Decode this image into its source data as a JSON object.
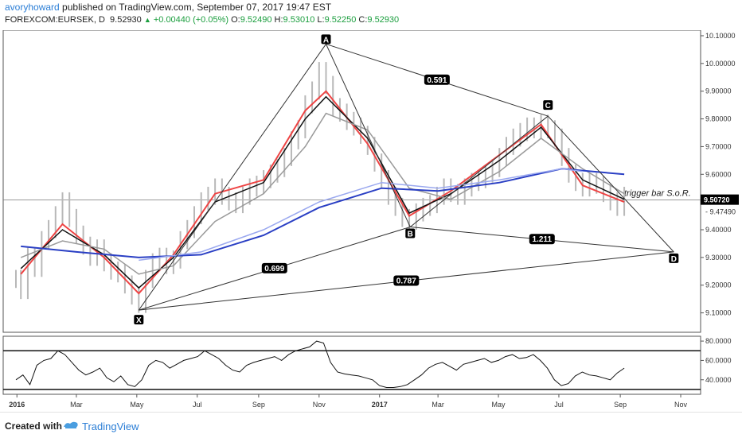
{
  "header": {
    "username": "avoryhoward",
    "published_text": "published on TradingView.com, September 07, 2017 19:47 EST",
    "symbol": "FOREXCOM:EURSEK, D",
    "last": "9.52930",
    "change": "+0.00440 (+0.05%)",
    "o_label": "O:",
    "o_value": "9.52490",
    "h_label": "H:",
    "h_value": "9.53010",
    "l_label": "L:",
    "l_value": "9.52250",
    "c_label": "C:",
    "c_value": "9.52930"
  },
  "footer": {
    "created_with": "Created with",
    "brand": "TradingView"
  },
  "colors": {
    "price_bars": "#b8b8b8",
    "ema_red": "#ee4444",
    "sma_black": "#111111",
    "ma_gray": "#9a9a9a",
    "ma_blue": "#2a3fc4",
    "ma_lightblue": "#9aa8ef",
    "pattern_lines": "#333333",
    "label_bg": "#000000"
  },
  "chart_data": {
    "type": "line",
    "symbol": "FOREXCOM:EURSEK",
    "timeframe": "D",
    "x_tick_labels": [
      "2016",
      "Mar",
      "May",
      "Jul",
      "Sep",
      "Nov",
      "2017",
      "Mar",
      "May",
      "Jul",
      "Sep",
      "Nov"
    ],
    "y_tick_labels": [
      "10.10000",
      "10.00000",
      "9.90000",
      "9.80000",
      "9.70000",
      "9.60000",
      "9.40000",
      "9.30000",
      "9.20000",
      "9.10000"
    ],
    "ylim": [
      9.03,
      10.12
    ],
    "price_label_current": "9.50720",
    "price_label_secondary": "9.47490",
    "horizontal_line": 9.5072,
    "price_series": {
      "name": "EURSEK close",
      "points": [
        [
          "2015-12-31",
          9.22
        ],
        [
          "2016-01-05",
          9.18
        ],
        [
          "2016-01-12",
          9.3
        ],
        [
          "2016-01-19",
          9.26
        ],
        [
          "2016-01-26",
          9.36
        ],
        [
          "2016-02-02",
          9.4
        ],
        [
          "2016-02-09",
          9.45
        ],
        [
          "2016-02-16",
          9.5
        ],
        [
          "2016-02-23",
          9.44
        ],
        [
          "2016-03-01",
          9.38
        ],
        [
          "2016-03-08",
          9.34
        ],
        [
          "2016-03-15",
          9.3
        ],
        [
          "2016-03-22",
          9.33
        ],
        [
          "2016-03-29",
          9.28
        ],
        [
          "2016-04-05",
          9.25
        ],
        [
          "2016-04-12",
          9.24
        ],
        [
          "2016-04-19",
          9.2
        ],
        [
          "2016-04-26",
          9.16
        ],
        [
          "2016-05-03",
          9.13
        ],
        [
          "2016-05-10",
          9.22
        ],
        [
          "2016-05-17",
          9.28
        ],
        [
          "2016-05-24",
          9.3
        ],
        [
          "2016-05-31",
          9.27
        ],
        [
          "2016-06-07",
          9.29
        ],
        [
          "2016-06-14",
          9.36
        ],
        [
          "2016-06-21",
          9.4
        ],
        [
          "2016-06-28",
          9.45
        ],
        [
          "2016-07-05",
          9.5
        ],
        [
          "2016-07-12",
          9.52
        ],
        [
          "2016-07-19",
          9.55
        ],
        [
          "2016-07-26",
          9.52
        ],
        [
          "2016-08-02",
          9.5
        ],
        [
          "2016-08-09",
          9.49
        ],
        [
          "2016-08-16",
          9.52
        ],
        [
          "2016-08-23",
          9.55
        ],
        [
          "2016-08-30",
          9.56
        ],
        [
          "2016-09-06",
          9.58
        ],
        [
          "2016-09-13",
          9.6
        ],
        [
          "2016-09-20",
          9.62
        ],
        [
          "2016-09-27",
          9.66
        ],
        [
          "2016-10-04",
          9.72
        ],
        [
          "2016-10-11",
          9.76
        ],
        [
          "2016-10-18",
          9.85
        ],
        [
          "2016-10-25",
          9.9
        ],
        [
          "2016-11-01",
          9.97
        ],
        [
          "2016-11-08",
          9.92
        ],
        [
          "2016-11-15",
          9.84
        ],
        [
          "2016-11-22",
          9.82
        ],
        [
          "2016-11-29",
          9.79
        ],
        [
          "2016-12-06",
          9.77
        ],
        [
          "2016-12-13",
          9.74
        ],
        [
          "2016-12-20",
          9.7
        ],
        [
          "2016-12-27",
          9.64
        ],
        [
          "2017-01-03",
          9.58
        ],
        [
          "2017-01-10",
          9.52
        ],
        [
          "2017-01-17",
          9.48
        ],
        [
          "2017-01-24",
          9.44
        ],
        [
          "2017-01-31",
          9.43
        ],
        [
          "2017-02-07",
          9.46
        ],
        [
          "2017-02-14",
          9.48
        ],
        [
          "2017-02-21",
          9.49
        ],
        [
          "2017-02-28",
          9.52
        ],
        [
          "2017-03-07",
          9.55
        ],
        [
          "2017-03-14",
          9.53
        ],
        [
          "2017-03-21",
          9.52
        ],
        [
          "2017-03-28",
          9.55
        ],
        [
          "2017-04-04",
          9.57
        ],
        [
          "2017-04-11",
          9.58
        ],
        [
          "2017-04-18",
          9.6
        ],
        [
          "2017-04-25",
          9.62
        ],
        [
          "2017-05-02",
          9.66
        ],
        [
          "2017-05-09",
          9.7
        ],
        [
          "2017-05-16",
          9.73
        ],
        [
          "2017-05-23",
          9.75
        ],
        [
          "2017-05-30",
          9.77
        ],
        [
          "2017-06-06",
          9.76
        ],
        [
          "2017-06-13",
          9.78
        ],
        [
          "2017-06-20",
          9.76
        ],
        [
          "2017-06-27",
          9.73
        ],
        [
          "2017-07-04",
          9.66
        ],
        [
          "2017-07-11",
          9.6
        ],
        [
          "2017-07-18",
          9.57
        ],
        [
          "2017-07-25",
          9.55
        ],
        [
          "2017-08-01",
          9.57
        ],
        [
          "2017-08-08",
          9.56
        ],
        [
          "2017-08-15",
          9.53
        ],
        [
          "2017-08-22",
          9.5
        ],
        [
          "2017-08-29",
          9.48
        ],
        [
          "2017-09-05",
          9.52
        ]
      ]
    },
    "moving_averages": [
      {
        "color": "red",
        "points": [
          [
            "2016-01-05",
            9.24
          ],
          [
            "2016-02-16",
            9.42
          ],
          [
            "2016-03-29",
            9.3
          ],
          [
            "2016-05-03",
            9.17
          ],
          [
            "2016-06-07",
            9.31
          ],
          [
            "2016-07-19",
            9.53
          ],
          [
            "2016-09-06",
            9.58
          ],
          [
            "2016-10-18",
            9.83
          ],
          [
            "2016-11-08",
            9.9
          ],
          [
            "2016-12-20",
            9.71
          ],
          [
            "2017-01-31",
            9.45
          ],
          [
            "2017-03-14",
            9.54
          ],
          [
            "2017-05-02",
            9.67
          ],
          [
            "2017-06-13",
            9.78
          ],
          [
            "2017-07-25",
            9.56
          ],
          [
            "2017-09-05",
            9.5
          ]
        ]
      },
      {
        "color": "black",
        "points": [
          [
            "2016-01-05",
            9.26
          ],
          [
            "2016-02-16",
            9.4
          ],
          [
            "2016-03-29",
            9.31
          ],
          [
            "2016-05-03",
            9.19
          ],
          [
            "2016-06-07",
            9.3
          ],
          [
            "2016-07-19",
            9.5
          ],
          [
            "2016-09-06",
            9.57
          ],
          [
            "2016-10-18",
            9.8
          ],
          [
            "2016-11-08",
            9.88
          ],
          [
            "2016-12-20",
            9.73
          ],
          [
            "2017-01-31",
            9.46
          ],
          [
            "2017-03-14",
            9.53
          ],
          [
            "2017-05-02",
            9.65
          ],
          [
            "2017-06-13",
            9.77
          ],
          [
            "2017-07-25",
            9.58
          ],
          [
            "2017-09-05",
            9.51
          ]
        ]
      },
      {
        "color": "gray",
        "points": [
          [
            "2016-01-05",
            9.3
          ],
          [
            "2016-02-16",
            9.36
          ],
          [
            "2016-03-29",
            9.33
          ],
          [
            "2016-05-03",
            9.24
          ],
          [
            "2016-06-07",
            9.27
          ],
          [
            "2016-07-19",
            9.43
          ],
          [
            "2016-09-06",
            9.53
          ],
          [
            "2016-10-18",
            9.7
          ],
          [
            "2016-11-08",
            9.82
          ],
          [
            "2016-12-20",
            9.76
          ],
          [
            "2017-01-31",
            9.55
          ],
          [
            "2017-03-14",
            9.51
          ],
          [
            "2017-05-02",
            9.61
          ],
          [
            "2017-06-13",
            9.73
          ],
          [
            "2017-07-25",
            9.62
          ],
          [
            "2017-09-05",
            9.53
          ]
        ]
      },
      {
        "color": "blue",
        "points": [
          [
            "2016-01-05",
            9.34
          ],
          [
            "2016-03-01",
            9.32
          ],
          [
            "2016-05-03",
            9.3
          ],
          [
            "2016-07-05",
            9.31
          ],
          [
            "2016-09-06",
            9.38
          ],
          [
            "2016-11-01",
            9.48
          ],
          [
            "2017-01-03",
            9.55
          ],
          [
            "2017-03-01",
            9.54
          ],
          [
            "2017-05-02",
            9.57
          ],
          [
            "2017-07-04",
            9.62
          ],
          [
            "2017-09-05",
            9.6
          ]
        ]
      },
      {
        "color": "lightblue",
        "points": [
          [
            "2016-05-03",
            9.29
          ],
          [
            "2016-07-05",
            9.32
          ],
          [
            "2016-09-06",
            9.4
          ],
          [
            "2016-11-01",
            9.5
          ],
          [
            "2017-01-03",
            9.57
          ],
          [
            "2017-03-01",
            9.55
          ],
          [
            "2017-05-02",
            9.58
          ],
          [
            "2017-07-04",
            9.62
          ],
          [
            "2017-07-25",
            9.61
          ]
        ]
      }
    ],
    "harmonic_pattern": {
      "points": [
        {
          "label": "X",
          "date": "2016-05-03",
          "price": 9.11
        },
        {
          "label": "A",
          "date": "2016-11-08",
          "price": 10.07
        },
        {
          "label": "B",
          "date": "2017-02-01",
          "price": 9.41
        },
        {
          "label": "C",
          "date": "2017-06-20",
          "price": 9.81
        },
        {
          "label": "D",
          "date": "2017-10-25",
          "price": 9.32
        }
      ],
      "ratios": [
        "0.591",
        "0.699",
        "1.211",
        "0.787"
      ]
    },
    "annotations": [
      "trigger bar S.o.R."
    ],
    "oscillator": {
      "y_tick_labels": [
        "80.0000",
        "60.0000",
        "40.0000"
      ],
      "ylim": [
        25,
        85
      ],
      "levels": [
        70,
        30
      ],
      "values": [
        40,
        45,
        35,
        55,
        60,
        62,
        70,
        66,
        58,
        50,
        45,
        48,
        52,
        42,
        38,
        44,
        35,
        33,
        40,
        55,
        60,
        58,
        52,
        56,
        60,
        62,
        64,
        70,
        66,
        62,
        55,
        50,
        48,
        55,
        58,
        60,
        62,
        64,
        60,
        66,
        70,
        72,
        74,
        80,
        78,
        58,
        48,
        46,
        45,
        44,
        42,
        40,
        34,
        32,
        32,
        33,
        35,
        40,
        45,
        52,
        56,
        58,
        54,
        50,
        56,
        58,
        60,
        62,
        58,
        60,
        64,
        66,
        62,
        63,
        66,
        60,
        52,
        40,
        34,
        36,
        44,
        48,
        45,
        44,
        42,
        40,
        47,
        52
      ]
    }
  }
}
